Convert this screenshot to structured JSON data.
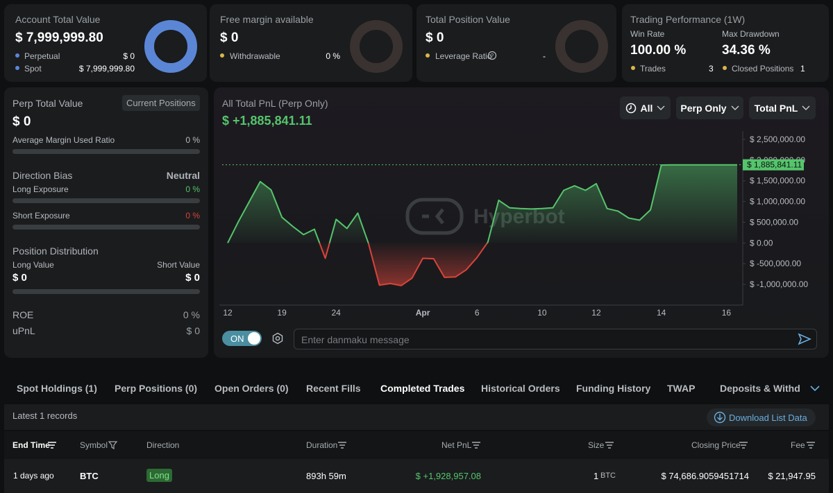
{
  "cards": [
    {
      "title": "Account Total Value",
      "value": "$ 7,999,999.80",
      "rows": [
        {
          "label": "Perpetual",
          "value": "$ 0"
        },
        {
          "label": "Spot",
          "value": "$ 7,999,999.80"
        }
      ]
    },
    {
      "title": "Free margin available",
      "value": "$ 0",
      "rows": [
        {
          "label": "Withdrawable",
          "value": "0 %"
        }
      ]
    },
    {
      "title": "Total Position Value",
      "value": "$ 0",
      "rows": [
        {
          "label": "Leverage Ratio",
          "value": "-"
        }
      ]
    }
  ],
  "performance": {
    "title": "Trading Performance (1W)",
    "win_rate_label": "Win Rate",
    "win_rate": "100.00 %",
    "drawdown_label": "Max Drawdown",
    "drawdown": "34.36 %",
    "trades_label": "Trades",
    "trades": "3",
    "closed_label": "Closed Positions",
    "closed": "1"
  },
  "left": {
    "title": "Perp Total Value",
    "button": "Current Positions",
    "value": "$ 0",
    "margin_label": "Average Margin Used Ratio",
    "margin_value": "0 %",
    "bias_label": "Direction Bias",
    "bias_value": "Neutral",
    "long_label": "Long Exposure",
    "long_value": "0 %",
    "short_label": "Short Exposure",
    "short_value": "0 %",
    "dist_label": "Position Distribution",
    "long_value_label": "Long Value",
    "short_value_label": "Short Value",
    "long_amount": "$ 0",
    "short_amount": "$ 0",
    "roe_label": "ROE",
    "roe_value": "0 %",
    "upnl_label": "uPnL",
    "upnl_value": "$ 0"
  },
  "chart_header": {
    "title": "All Total PnL (Perp Only)",
    "value": "$ +1,885,841.11",
    "filters": [
      "All",
      "Perp Only",
      "Total PnL"
    ],
    "watermark": "Hyperbot",
    "current_label": "$ 1,885,841.11"
  },
  "chart_data": {
    "type": "line",
    "categories": [
      "12",
      null,
      null,
      null,
      null,
      "19",
      null,
      null,
      null,
      null,
      "24",
      null,
      null,
      null,
      null,
      null,
      null,
      null,
      "Apr",
      null,
      null,
      null,
      null,
      "6",
      null,
      null,
      null,
      null,
      null,
      "10",
      null,
      null,
      null,
      null,
      "12",
      null,
      null,
      null,
      null,
      null,
      "14",
      null,
      null,
      null,
      null,
      null,
      "16",
      null
    ],
    "values": [
      0,
      520000,
      1000000,
      1480000,
      1280000,
      620000,
      400000,
      200000,
      330000,
      -370000,
      570000,
      350000,
      720000,
      -20000,
      -1020000,
      -980000,
      -1030000,
      -850000,
      -370000,
      -380000,
      -830000,
      -820000,
      -650000,
      -350000,
      20000,
      1030000,
      850000,
      830000,
      820000,
      830000,
      850000,
      1270000,
      1380000,
      1270000,
      1430000,
      830000,
      770000,
      600000,
      550000,
      800000,
      1880000,
      1885841.11,
      1885841.11,
      1885841.11,
      1885841.11,
      1885841.11,
      1885841.11,
      1885841.11
    ],
    "positive_color": "#55c56c",
    "negative_color": "#d8443a",
    "ylim": [
      -1500000,
      2600000
    ],
    "yticks": [
      {
        "value": 2500000,
        "label": "$ 2,500,000.00"
      },
      {
        "value": 2000000,
        "label": "$ 2,000,000.00"
      },
      {
        "value": 1500000,
        "label": "$ 1,500,000.00"
      },
      {
        "value": 1000000,
        "label": "$ 1,000,000.00"
      },
      {
        "value": 500000,
        "label": "$ 500,000.00"
      },
      {
        "value": 0,
        "label": "$ 0.00"
      },
      {
        "value": -500000,
        "label": "$ -500,000.00"
      },
      {
        "value": -1000000,
        "label": "$ -1,000,000.00"
      }
    ]
  },
  "danmaku": {
    "toggle": "ON",
    "placeholder": "Enter danmaku message"
  },
  "tabs": [
    "Spot Holdings (1)",
    "Perp Positions (0)",
    "Open Orders (0)",
    "Recent Fills",
    "Completed Trades",
    "Historical Orders",
    "Funding History",
    "TWAP",
    "Deposits & Withdraw"
  ],
  "records": "Latest 1 records",
  "download": "Download List Data",
  "table": {
    "headers": [
      "End Time",
      "Symbol",
      "Direction",
      "Duration",
      "Net PnL",
      "Size",
      "Closing Price",
      "Fee"
    ],
    "rows": [
      [
        "1 days ago",
        "BTC",
        "Long",
        "893h 59m",
        "$ +1,928,957.08",
        "1",
        "$ 74,686.9059451714",
        "$ 21,947.95"
      ]
    ],
    "size_unit": "BTC"
  }
}
